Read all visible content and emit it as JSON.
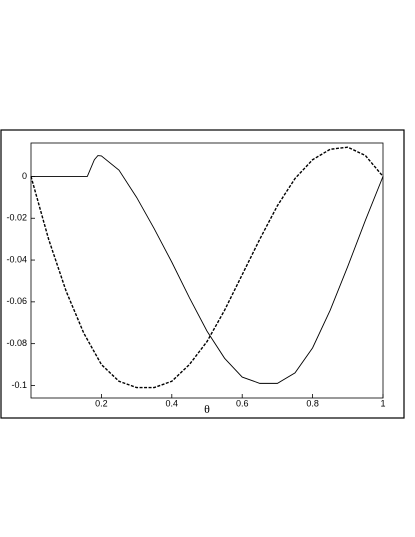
{
  "chart_data": {
    "type": "line",
    "xlabel": "θ",
    "xlim": [
      0,
      1
    ],
    "ylim": [
      -0.106,
      0.016
    ],
    "xticks": [
      0.2,
      0.4,
      0.6,
      0.8,
      1
    ],
    "yticks": [
      0,
      -0.02,
      -0.04,
      -0.06,
      -0.08,
      -0.1
    ],
    "series": [
      {
        "color": "#000000",
        "dashed": false,
        "x": [
          0,
          0.05,
          0.1,
          0.15,
          0.16,
          0.18,
          0.19,
          0.2,
          0.25,
          0.3,
          0.35,
          0.4,
          0.45,
          0.5,
          0.55,
          0.6,
          0.65,
          0.7,
          0.75,
          0.8,
          0.85,
          0.9,
          0.95,
          1
        ],
        "values": [
          0,
          0,
          0,
          0,
          0,
          0.008,
          0.01,
          0.0098,
          0.003,
          -0.01,
          -0.025,
          -0.041,
          -0.058,
          -0.074,
          -0.087,
          -0.096,
          -0.099,
          -0.099,
          -0.094,
          -0.082,
          -0.064,
          -0.043,
          -0.021,
          0
        ]
      },
      {
        "color": "#000000",
        "dashed": true,
        "x": [
          0,
          0.05,
          0.1,
          0.15,
          0.2,
          0.25,
          0.3,
          0.35,
          0.4,
          0.45,
          0.5,
          0.55,
          0.6,
          0.65,
          0.7,
          0.75,
          0.8,
          0.85,
          0.9,
          0.95,
          1
        ],
        "values": [
          0,
          -0.03,
          -0.055,
          -0.075,
          -0.09,
          -0.098,
          -0.101,
          -0.101,
          -0.098,
          -0.09,
          -0.079,
          -0.064,
          -0.047,
          -0.03,
          -0.014,
          -0.001,
          0.008,
          0.013,
          0.014,
          0.01,
          0
        ]
      }
    ]
  }
}
